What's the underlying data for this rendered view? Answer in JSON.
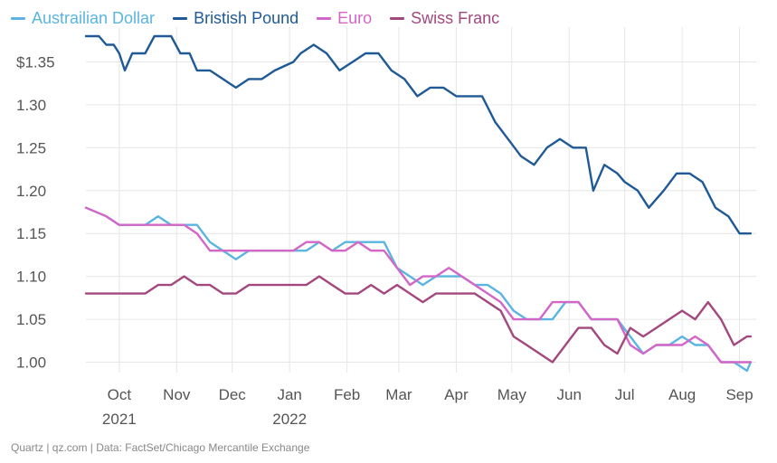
{
  "legend": [
    {
      "name": "Austrailian Dollar",
      "color": "#5bb5e0"
    },
    {
      "name": "Bristish Pound",
      "color": "#1f5a96"
    },
    {
      "name": "Euro",
      "color": "#d466c8"
    },
    {
      "name": "Swiss Franc",
      "color": "#a3487e"
    }
  ],
  "source": "Quartz | qz.com | Data: FactSet/Chicago Mercantile Exchange",
  "chart_data": {
    "type": "line",
    "title": "",
    "xlabel": "",
    "ylabel": "",
    "ylim": [
      0.99,
      1.38
    ],
    "xlim": [
      "2021-09-13",
      "2022-09-10"
    ],
    "y_ticks": [
      1.0,
      1.05,
      1.1,
      1.15,
      1.2,
      1.25,
      1.3,
      1.35
    ],
    "y_tick_labels": [
      "1.00",
      "1.05",
      "1.10",
      "1.15",
      "1.20",
      "1.25",
      "1.30",
      "$1.35"
    ],
    "x_ticks": [
      {
        "date": "2021-10-01",
        "label": "Oct",
        "year": "2021"
      },
      {
        "date": "2021-11-01",
        "label": "Nov"
      },
      {
        "date": "2021-12-01",
        "label": "Dec"
      },
      {
        "date": "2022-01-01",
        "label": "Jan",
        "year": "2022"
      },
      {
        "date": "2022-02-01",
        "label": "Feb"
      },
      {
        "date": "2022-03-01",
        "label": "Mar"
      },
      {
        "date": "2022-04-01",
        "label": "Apr"
      },
      {
        "date": "2022-05-01",
        "label": "May"
      },
      {
        "date": "2022-06-01",
        "label": "Jun"
      },
      {
        "date": "2022-07-01",
        "label": "Jul"
      },
      {
        "date": "2022-08-01",
        "label": "Aug"
      },
      {
        "date": "2022-09-01",
        "label": "Sep"
      }
    ],
    "grid": "vertical",
    "legend_position": "top-left",
    "series": [
      {
        "name": "Bristish Pound",
        "color": "#1f5a96",
        "points": [
          [
            "2021-09-13",
            1.38
          ],
          [
            "2021-09-20",
            1.38
          ],
          [
            "2021-09-24",
            1.37
          ],
          [
            "2021-09-28",
            1.37
          ],
          [
            "2021-10-01",
            1.36
          ],
          [
            "2021-10-04",
            1.34
          ],
          [
            "2021-10-08",
            1.36
          ],
          [
            "2021-10-15",
            1.36
          ],
          [
            "2021-10-20",
            1.38
          ],
          [
            "2021-10-29",
            1.38
          ],
          [
            "2021-11-03",
            1.36
          ],
          [
            "2021-11-08",
            1.36
          ],
          [
            "2021-11-12",
            1.34
          ],
          [
            "2021-11-19",
            1.34
          ],
          [
            "2021-11-26",
            1.33
          ],
          [
            "2021-12-03",
            1.32
          ],
          [
            "2021-12-10",
            1.33
          ],
          [
            "2021-12-17",
            1.33
          ],
          [
            "2021-12-24",
            1.34
          ],
          [
            "2022-01-03",
            1.35
          ],
          [
            "2022-01-07",
            1.36
          ],
          [
            "2022-01-14",
            1.37
          ],
          [
            "2022-01-21",
            1.36
          ],
          [
            "2022-01-28",
            1.34
          ],
          [
            "2022-02-04",
            1.35
          ],
          [
            "2022-02-11",
            1.36
          ],
          [
            "2022-02-18",
            1.36
          ],
          [
            "2022-02-25",
            1.34
          ],
          [
            "2022-03-04",
            1.33
          ],
          [
            "2022-03-11",
            1.31
          ],
          [
            "2022-03-18",
            1.32
          ],
          [
            "2022-03-25",
            1.32
          ],
          [
            "2022-04-01",
            1.31
          ],
          [
            "2022-04-08",
            1.31
          ],
          [
            "2022-04-15",
            1.31
          ],
          [
            "2022-04-22",
            1.28
          ],
          [
            "2022-04-29",
            1.26
          ],
          [
            "2022-05-06",
            1.24
          ],
          [
            "2022-05-13",
            1.23
          ],
          [
            "2022-05-20",
            1.25
          ],
          [
            "2022-05-27",
            1.26
          ],
          [
            "2022-06-03",
            1.25
          ],
          [
            "2022-06-10",
            1.25
          ],
          [
            "2022-06-14",
            1.2
          ],
          [
            "2022-06-20",
            1.23
          ],
          [
            "2022-06-27",
            1.22
          ],
          [
            "2022-07-01",
            1.21
          ],
          [
            "2022-07-08",
            1.2
          ],
          [
            "2022-07-14",
            1.18
          ],
          [
            "2022-07-22",
            1.2
          ],
          [
            "2022-07-29",
            1.22
          ],
          [
            "2022-08-05",
            1.22
          ],
          [
            "2022-08-12",
            1.21
          ],
          [
            "2022-08-19",
            1.18
          ],
          [
            "2022-08-26",
            1.17
          ],
          [
            "2022-09-01",
            1.15
          ],
          [
            "2022-09-07",
            1.15
          ]
        ]
      },
      {
        "name": "Austrailian Dollar",
        "color": "#5bb5e0",
        "points": [
          [
            "2021-09-13",
            1.18
          ],
          [
            "2021-09-24",
            1.17
          ],
          [
            "2021-10-01",
            1.16
          ],
          [
            "2021-10-08",
            1.16
          ],
          [
            "2021-10-15",
            1.16
          ],
          [
            "2021-10-22",
            1.17
          ],
          [
            "2021-10-29",
            1.16
          ],
          [
            "2021-11-05",
            1.16
          ],
          [
            "2021-11-12",
            1.16
          ],
          [
            "2021-11-19",
            1.14
          ],
          [
            "2021-11-26",
            1.13
          ],
          [
            "2021-12-03",
            1.12
          ],
          [
            "2021-12-10",
            1.13
          ],
          [
            "2021-12-17",
            1.13
          ],
          [
            "2021-12-24",
            1.13
          ],
          [
            "2022-01-03",
            1.13
          ],
          [
            "2022-01-10",
            1.13
          ],
          [
            "2022-01-17",
            1.14
          ],
          [
            "2022-01-24",
            1.13
          ],
          [
            "2022-01-31",
            1.14
          ],
          [
            "2022-02-07",
            1.14
          ],
          [
            "2022-02-14",
            1.14
          ],
          [
            "2022-02-21",
            1.14
          ],
          [
            "2022-02-28",
            1.11
          ],
          [
            "2022-03-07",
            1.1
          ],
          [
            "2022-03-14",
            1.09
          ],
          [
            "2022-03-21",
            1.1
          ],
          [
            "2022-03-28",
            1.1
          ],
          [
            "2022-04-04",
            1.1
          ],
          [
            "2022-04-11",
            1.09
          ],
          [
            "2022-04-18",
            1.09
          ],
          [
            "2022-04-25",
            1.08
          ],
          [
            "2022-05-02",
            1.06
          ],
          [
            "2022-05-09",
            1.05
          ],
          [
            "2022-05-16",
            1.05
          ],
          [
            "2022-05-23",
            1.05
          ],
          [
            "2022-05-30",
            1.07
          ],
          [
            "2022-06-06",
            1.07
          ],
          [
            "2022-06-13",
            1.05
          ],
          [
            "2022-06-20",
            1.05
          ],
          [
            "2022-06-27",
            1.05
          ],
          [
            "2022-07-04",
            1.03
          ],
          [
            "2022-07-11",
            1.01
          ],
          [
            "2022-07-18",
            1.02
          ],
          [
            "2022-07-25",
            1.02
          ],
          [
            "2022-08-01",
            1.03
          ],
          [
            "2022-08-08",
            1.02
          ],
          [
            "2022-08-15",
            1.02
          ],
          [
            "2022-08-22",
            1.0
          ],
          [
            "2022-08-29",
            1.0
          ],
          [
            "2022-09-05",
            0.99
          ],
          [
            "2022-09-07",
            1.0
          ]
        ]
      },
      {
        "name": "Euro",
        "color": "#d466c8",
        "points": [
          [
            "2021-09-13",
            1.18
          ],
          [
            "2021-09-24",
            1.17
          ],
          [
            "2021-10-01",
            1.16
          ],
          [
            "2021-10-08",
            1.16
          ],
          [
            "2021-10-15",
            1.16
          ],
          [
            "2021-10-22",
            1.16
          ],
          [
            "2021-10-29",
            1.16
          ],
          [
            "2021-11-05",
            1.16
          ],
          [
            "2021-11-12",
            1.15
          ],
          [
            "2021-11-19",
            1.13
          ],
          [
            "2021-11-26",
            1.13
          ],
          [
            "2021-12-03",
            1.13
          ],
          [
            "2021-12-10",
            1.13
          ],
          [
            "2021-12-17",
            1.13
          ],
          [
            "2021-12-24",
            1.13
          ],
          [
            "2022-01-03",
            1.13
          ],
          [
            "2022-01-10",
            1.14
          ],
          [
            "2022-01-17",
            1.14
          ],
          [
            "2022-01-24",
            1.13
          ],
          [
            "2022-01-31",
            1.13
          ],
          [
            "2022-02-07",
            1.14
          ],
          [
            "2022-02-14",
            1.13
          ],
          [
            "2022-02-21",
            1.13
          ],
          [
            "2022-02-28",
            1.11
          ],
          [
            "2022-03-07",
            1.09
          ],
          [
            "2022-03-14",
            1.1
          ],
          [
            "2022-03-21",
            1.1
          ],
          [
            "2022-03-28",
            1.11
          ],
          [
            "2022-04-04",
            1.1
          ],
          [
            "2022-04-11",
            1.09
          ],
          [
            "2022-04-18",
            1.08
          ],
          [
            "2022-04-25",
            1.07
          ],
          [
            "2022-05-02",
            1.05
          ],
          [
            "2022-05-09",
            1.05
          ],
          [
            "2022-05-16",
            1.05
          ],
          [
            "2022-05-23",
            1.07
          ],
          [
            "2022-05-30",
            1.07
          ],
          [
            "2022-06-06",
            1.07
          ],
          [
            "2022-06-13",
            1.05
          ],
          [
            "2022-06-20",
            1.05
          ],
          [
            "2022-06-27",
            1.05
          ],
          [
            "2022-07-04",
            1.02
          ],
          [
            "2022-07-11",
            1.01
          ],
          [
            "2022-07-18",
            1.02
          ],
          [
            "2022-07-25",
            1.02
          ],
          [
            "2022-08-01",
            1.02
          ],
          [
            "2022-08-08",
            1.03
          ],
          [
            "2022-08-15",
            1.02
          ],
          [
            "2022-08-22",
            1.0
          ],
          [
            "2022-08-29",
            1.0
          ],
          [
            "2022-09-05",
            1.0
          ],
          [
            "2022-09-07",
            1.0
          ]
        ]
      },
      {
        "name": "Swiss Franc",
        "color": "#a3487e",
        "points": [
          [
            "2021-09-13",
            1.08
          ],
          [
            "2021-09-24",
            1.08
          ],
          [
            "2021-10-01",
            1.08
          ],
          [
            "2021-10-08",
            1.08
          ],
          [
            "2021-10-15",
            1.08
          ],
          [
            "2021-10-22",
            1.09
          ],
          [
            "2021-10-29",
            1.09
          ],
          [
            "2021-11-05",
            1.1
          ],
          [
            "2021-11-12",
            1.09
          ],
          [
            "2021-11-19",
            1.09
          ],
          [
            "2021-11-26",
            1.08
          ],
          [
            "2021-12-03",
            1.08
          ],
          [
            "2021-12-10",
            1.09
          ],
          [
            "2021-12-17",
            1.09
          ],
          [
            "2021-12-24",
            1.09
          ],
          [
            "2022-01-03",
            1.09
          ],
          [
            "2022-01-10",
            1.09
          ],
          [
            "2022-01-17",
            1.1
          ],
          [
            "2022-01-24",
            1.09
          ],
          [
            "2022-01-31",
            1.08
          ],
          [
            "2022-02-07",
            1.08
          ],
          [
            "2022-02-14",
            1.09
          ],
          [
            "2022-02-21",
            1.08
          ],
          [
            "2022-02-28",
            1.09
          ],
          [
            "2022-03-07",
            1.08
          ],
          [
            "2022-03-14",
            1.07
          ],
          [
            "2022-03-21",
            1.08
          ],
          [
            "2022-03-28",
            1.08
          ],
          [
            "2022-04-04",
            1.08
          ],
          [
            "2022-04-11",
            1.08
          ],
          [
            "2022-04-18",
            1.07
          ],
          [
            "2022-04-25",
            1.06
          ],
          [
            "2022-05-02",
            1.03
          ],
          [
            "2022-05-09",
            1.02
          ],
          [
            "2022-05-16",
            1.01
          ],
          [
            "2022-05-23",
            1.0
          ],
          [
            "2022-05-30",
            1.02
          ],
          [
            "2022-06-06",
            1.04
          ],
          [
            "2022-06-13",
            1.04
          ],
          [
            "2022-06-20",
            1.02
          ],
          [
            "2022-06-27",
            1.01
          ],
          [
            "2022-07-04",
            1.04
          ],
          [
            "2022-07-11",
            1.03
          ],
          [
            "2022-07-18",
            1.04
          ],
          [
            "2022-07-25",
            1.05
          ],
          [
            "2022-08-01",
            1.06
          ],
          [
            "2022-08-08",
            1.05
          ],
          [
            "2022-08-15",
            1.07
          ],
          [
            "2022-08-22",
            1.05
          ],
          [
            "2022-08-29",
            1.02
          ],
          [
            "2022-09-05",
            1.03
          ],
          [
            "2022-09-07",
            1.03
          ]
        ]
      }
    ]
  }
}
